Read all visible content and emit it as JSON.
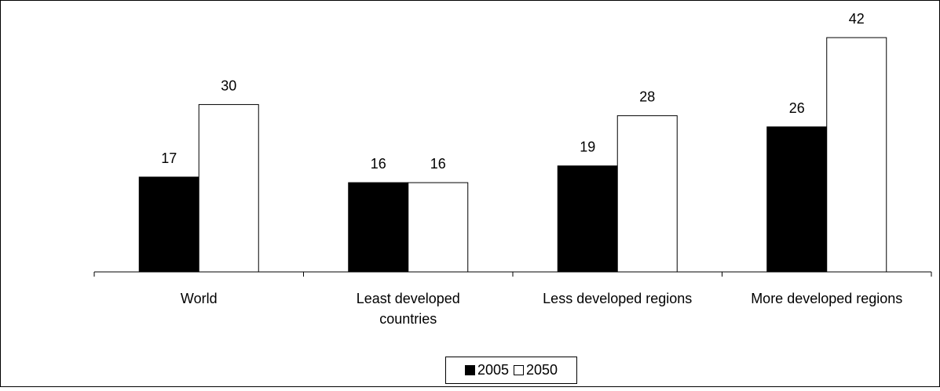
{
  "chart_data": {
    "type": "bar",
    "categories": [
      "World",
      "Least developed\ncountries",
      "Less developed regions",
      "More developed regions"
    ],
    "series": [
      {
        "name": "2005",
        "values": [
          17,
          16,
          19,
          26
        ],
        "color": "#000000"
      },
      {
        "name": "2050",
        "values": [
          30,
          16,
          28,
          42
        ],
        "color": "#ffffff"
      }
    ],
    "ylim": [
      0,
      45
    ],
    "grid": false,
    "legend_position": "bottom"
  }
}
